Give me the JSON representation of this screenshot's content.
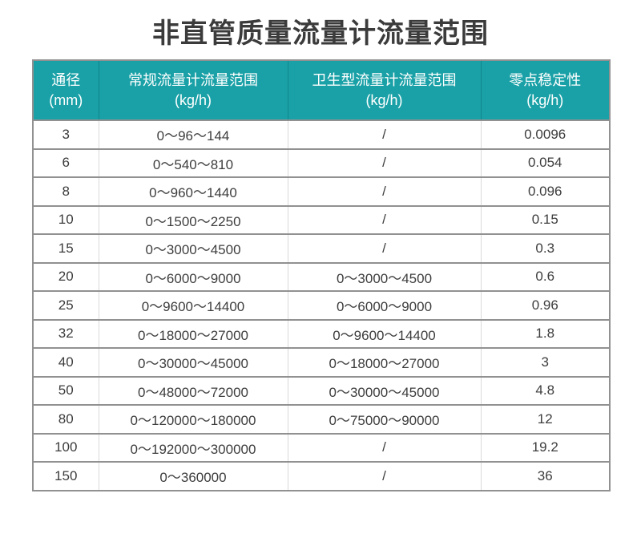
{
  "title": "非直管质量流量计流量范围",
  "colors": {
    "header_bg": "#1aa1a7",
    "header_text": "#ffffff",
    "row_border": "#919191",
    "column_border": "#d9d9d9",
    "cell_text": "#3d3d3d",
    "title_text": "#3b3b3b",
    "background": "#ffffff"
  },
  "table": {
    "column_keys": [
      "diameter",
      "standard-range",
      "sanitary-range",
      "zero-stability"
    ],
    "columns": [
      {
        "label": "通径",
        "unit": "(mm)"
      },
      {
        "label": "常规流量计流量范围",
        "unit": "(kg/h)"
      },
      {
        "label": "卫生型流量计流量范围",
        "unit": "(kg/h)"
      },
      {
        "label": "零点稳定性",
        "unit": "(kg/h)"
      }
    ],
    "rows": [
      [
        "3",
        "0～96～144",
        "/",
        "0.0096"
      ],
      [
        "6",
        "0～540～810",
        "/",
        "0.054"
      ],
      [
        "8",
        "0～960～1440",
        "/",
        "0.096"
      ],
      [
        "10",
        "0～1500～2250",
        "/",
        "0.15"
      ],
      [
        "15",
        "0～3000～4500",
        "/",
        "0.3"
      ],
      [
        "20",
        "0～6000～9000",
        "0～3000～4500",
        "0.6"
      ],
      [
        "25",
        "0～9600～14400",
        "0～6000～9000",
        "0.96"
      ],
      [
        "32",
        "0～18000～27000",
        "0～9600～14400",
        "1.8"
      ],
      [
        "40",
        "0～30000～45000",
        "0～18000～27000",
        "3"
      ],
      [
        "50",
        "0～48000～72000",
        "0～30000～45000",
        "4.8"
      ],
      [
        "80",
        "0～120000～180000",
        "0～75000～90000",
        "12"
      ],
      [
        "100",
        "0～192000～300000",
        "/",
        "19.2"
      ],
      [
        "150",
        "0～360000",
        "/",
        "36"
      ]
    ]
  }
}
